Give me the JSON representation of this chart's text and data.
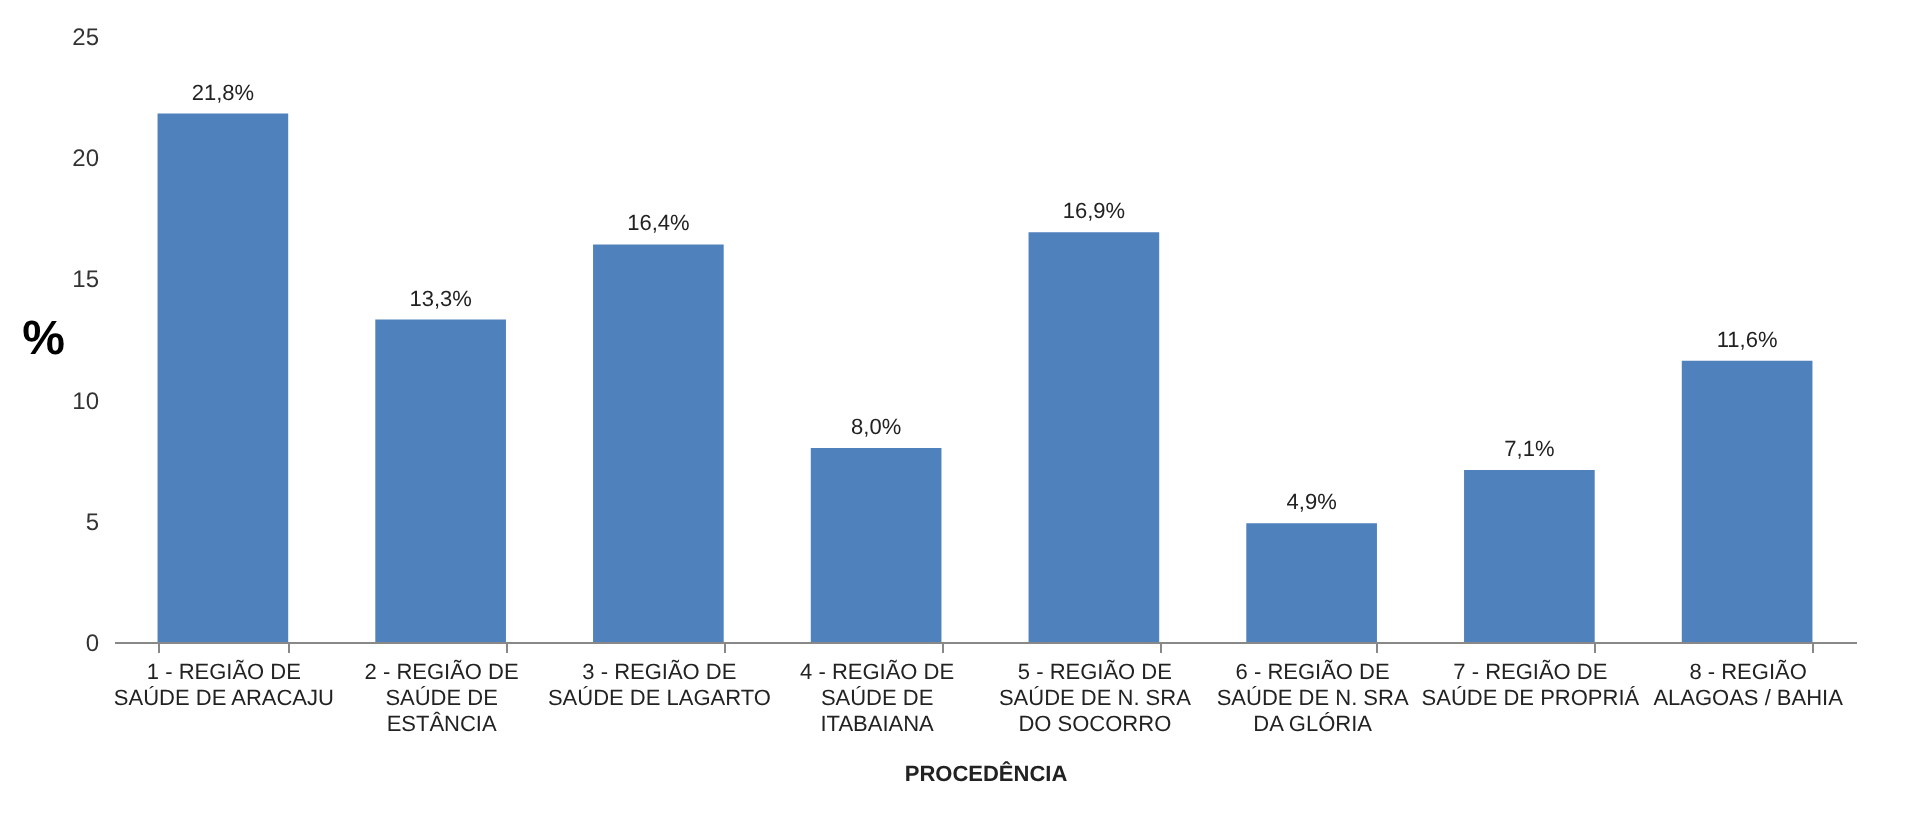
{
  "chart_data": {
    "type": "bar",
    "xlabel": "PROCEDÊNCIA",
    "ylabel": "%",
    "categories": [
      "1 - REGIÃO DE SAÚDE DE ARACAJU",
      "2 - REGIÃO DE SAÚDE DE ESTÂNCIA",
      "3 - REGIÃO DE SAÚDE DE LAGARTO",
      "4 - REGIÃO DE SAÚDE DE ITABAIANA",
      "5 - REGIÃO DE SAÚDE DE N. SRA DO SOCORRO",
      "6 - REGIÃO DE SAÚDE DE N. SRA DA GLÓRIA",
      "7 - REGIÃO DE SAÚDE DE PROPRIÁ",
      "8 - REGIÃO ALAGOAS / BAHIA"
    ],
    "values": [
      21.8,
      13.3,
      16.4,
      8.0,
      16.9,
      4.9,
      7.1,
      11.6
    ],
    "value_labels": [
      "21,8%",
      "13,3%",
      "16,4%",
      "8,0%",
      "16,9%",
      "4,9%",
      "7,1%",
      "11,6%"
    ],
    "color": "#4f81bd",
    "ylim": [
      0,
      25
    ],
    "yticks": [
      0,
      5,
      10,
      15,
      20,
      25
    ],
    "grid": false
  }
}
